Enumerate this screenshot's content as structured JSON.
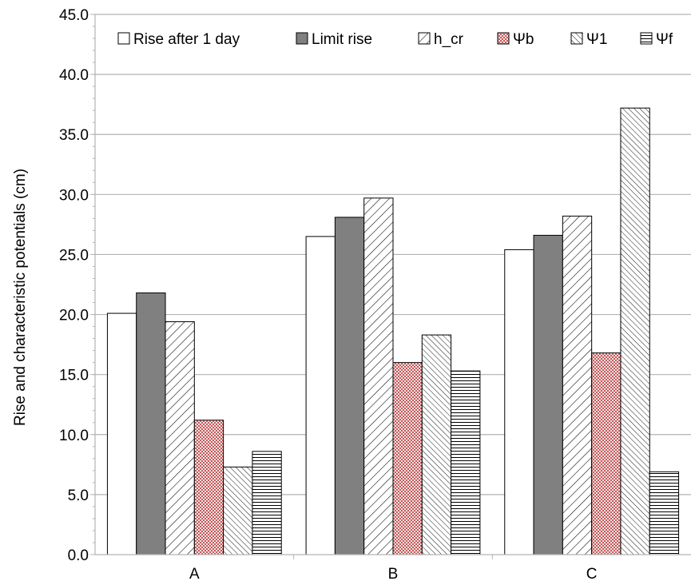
{
  "chart_data": {
    "type": "bar",
    "ylabel": "Rise and characteristic potentials (cm)",
    "xlabel": "",
    "ylim": [
      0,
      45
    ],
    "ytick_step": 5,
    "ytick_labels": [
      "0.0",
      "5.0",
      "10.0",
      "15.0",
      "20.0",
      "25.0",
      "30.0",
      "35.0",
      "40.0",
      "45.0"
    ],
    "grid": "horizontal major lines on",
    "legend_position": "top",
    "categories": [
      "A",
      "B",
      "C"
    ],
    "series": [
      {
        "name": "Rise after 1 day",
        "values": [
          20.1,
          26.5,
          25.4
        ],
        "fill": "#ffffff",
        "pattern": "none"
      },
      {
        "name": "Limit rise",
        "values": [
          21.8,
          28.1,
          26.6
        ],
        "fill": "#808080",
        "pattern": "none"
      },
      {
        "name": "h_cr",
        "values": [
          19.4,
          29.7,
          28.2
        ],
        "fill": "#ffffff",
        "pattern": "diagonal-wide"
      },
      {
        "name": "Ψb",
        "values": [
          11.2,
          16.0,
          16.8
        ],
        "fill": "#f2d8d8",
        "pattern": "crosshatch-red"
      },
      {
        "name": "Ψ1",
        "values": [
          7.3,
          18.3,
          37.2
        ],
        "fill": "#ffffff",
        "pattern": "diagonal-dense"
      },
      {
        "name": "Ψf",
        "values": [
          8.6,
          15.3,
          6.9
        ],
        "fill": "#ffffff",
        "pattern": "horizontal"
      }
    ]
  }
}
